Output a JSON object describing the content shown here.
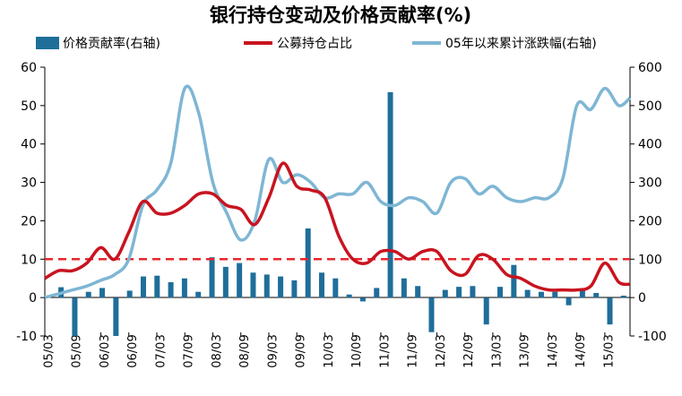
{
  "chart_data": {
    "type": "line",
    "title": "银行持仓变动及价格贡献率(%)",
    "legend_position": "top",
    "grid": false,
    "left_axis": {
      "ylim": [
        -10,
        60
      ],
      "ticks": [
        -10,
        0,
        10,
        20,
        30,
        40,
        50,
        60
      ]
    },
    "right_axis": {
      "ylim": [
        -100,
        600
      ],
      "ticks": [
        -100,
        0,
        100,
        200,
        300,
        400,
        500,
        600
      ]
    },
    "reference_line": {
      "value": 10,
      "axis": "left",
      "color": "#e8262b",
      "style": "dashed"
    },
    "x_tick_labels": [
      "05/03",
      "05/09",
      "06/03",
      "06/09",
      "07/03",
      "07/09",
      "08/03",
      "08/09",
      "09/03",
      "09/09",
      "10/03",
      "10/09",
      "11/03",
      "11/09",
      "12/03",
      "12/09",
      "13/03",
      "13/09",
      "14/03",
      "14/09",
      "15/03"
    ],
    "x_range": [
      0,
      20.9
    ],
    "series": [
      {
        "name": "价格贡献率(右轴)",
        "kind": "bar",
        "axis": "right",
        "color": "#1f6e9a",
        "x": [
          0.58,
          1.07,
          1.56,
          2.05,
          2.54,
          3.03,
          3.52,
          4.01,
          4.5,
          4.99,
          5.48,
          5.97,
          6.46,
          6.95,
          7.44,
          7.93,
          8.42,
          8.91,
          9.4,
          9.89,
          10.38,
          10.87,
          11.36,
          11.85,
          12.34,
          12.83,
          13.32,
          13.81,
          14.3,
          14.79,
          15.28,
          15.77,
          16.26,
          16.75,
          17.24,
          17.73,
          18.22,
          18.71,
          19.2,
          19.69,
          20.18,
          20.67
        ],
        "values": [
          27,
          -100,
          15,
          25,
          -100,
          18,
          55,
          57,
          40,
          50,
          15,
          105,
          80,
          90,
          65,
          60,
          55,
          45,
          180,
          65,
          50,
          8,
          -10,
          25,
          535,
          50,
          30,
          -90,
          20,
          28,
          30,
          -70,
          28,
          85,
          20,
          15,
          15,
          -20,
          20,
          12,
          -70,
          5
        ]
      },
      {
        "name": "公募持仓占比",
        "kind": "line",
        "axis": "left",
        "color": "#c8141f",
        "x": [
          0,
          0.5,
          1.0,
          1.5,
          2.0,
          2.5,
          3.0,
          3.5,
          4.0,
          4.5,
          5.0,
          5.5,
          6.0,
          6.5,
          7.0,
          7.5,
          8.0,
          8.5,
          9.0,
          9.5,
          10.0,
          10.5,
          11.0,
          11.5,
          12.0,
          12.5,
          13.0,
          13.5,
          14.0,
          14.5,
          15.0,
          15.5,
          16.0,
          16.5,
          17.0,
          17.5,
          18.0,
          18.5,
          19.0,
          19.5,
          20.0,
          20.5,
          20.9
        ],
        "values": [
          5,
          7,
          7,
          9,
          13,
          10,
          17,
          25,
          22,
          22,
          24,
          27,
          27,
          24,
          23,
          19,
          26,
          35,
          29,
          28,
          26,
          16,
          10,
          9,
          12,
          12,
          10,
          12,
          12,
          7,
          6,
          11,
          10,
          6,
          5,
          3,
          2,
          2,
          2,
          3,
          9,
          4,
          3.5
        ]
      },
      {
        "name": "05年以来累计涨跌幅(右轴)",
        "kind": "line",
        "axis": "right",
        "color": "#7eb6d4",
        "x": [
          0,
          0.5,
          1.0,
          1.5,
          2.0,
          2.5,
          3.0,
          3.5,
          4.0,
          4.5,
          5.0,
          5.5,
          6.0,
          6.5,
          7.0,
          7.5,
          8.0,
          8.5,
          9.0,
          9.5,
          10.0,
          10.5,
          11.0,
          11.5,
          12.0,
          12.5,
          13.0,
          13.5,
          14.0,
          14.5,
          15.0,
          15.5,
          16.0,
          16.5,
          17.0,
          17.5,
          18.0,
          18.5,
          19.0,
          19.5,
          20.0,
          20.5,
          20.9
        ],
        "values": [
          0,
          10,
          20,
          30,
          45,
          60,
          100,
          240,
          280,
          350,
          545,
          480,
          300,
          220,
          150,
          200,
          360,
          300,
          320,
          300,
          260,
          270,
          270,
          300,
          250,
          240,
          260,
          250,
          220,
          300,
          310,
          270,
          290,
          260,
          250,
          260,
          260,
          310,
          500,
          490,
          545,
          500,
          520
        ]
      }
    ]
  }
}
